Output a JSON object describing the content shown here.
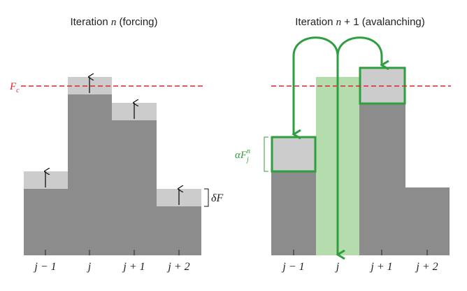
{
  "panels": [
    {
      "title_prefix": "Iteration ",
      "title_var": "n",
      "title_suffix": " (forcing)",
      "ticks": [
        "j − 1",
        "j",
        "j + 1",
        "j + 2"
      ]
    },
    {
      "title_prefix": "Iteration ",
      "title_var": "n",
      "title_suffix": " + 1 (avalanching)",
      "ticks": [
        "j − 1",
        "j",
        "j + 1",
        "j + 2"
      ]
    }
  ],
  "threshold_label_main": "F",
  "threshold_label_sub": "c",
  "increment_label": "δF",
  "redistribution_label": {
    "coeff": "α",
    "var": "F",
    "sup": "n",
    "sub": "j"
  },
  "colors": {
    "column": "#8c8c8c",
    "increment": "#cccccc",
    "threshold": "#d9262b",
    "transfer": "#2e9e3e",
    "unstable_fill": "#b4dcac"
  }
}
